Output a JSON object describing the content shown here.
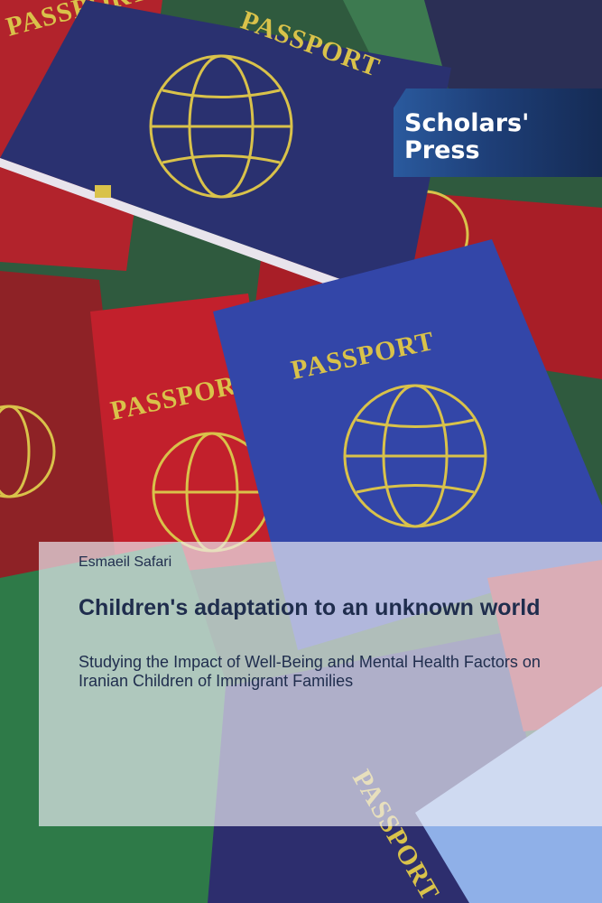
{
  "publisher": {
    "line1": "Scholars'",
    "line2": "Press"
  },
  "book": {
    "author": "Esmaeil Safari",
    "title": "Children's adaptation to an unknown world",
    "subtitle": "Studying the Impact of Well-Being and Mental Health Factors on Iranian Children of Immigrant Families"
  },
  "background": {
    "passport_label": "PASSPORT"
  },
  "colors": {
    "navy": "#1f2d4d",
    "logo_blue": "#1e3f78",
    "gold": "#d9c24a"
  }
}
